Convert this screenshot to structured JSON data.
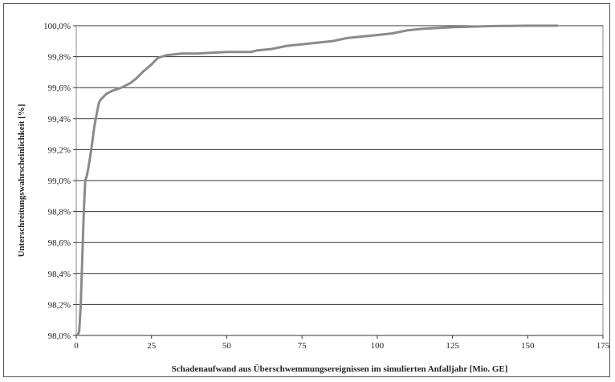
{
  "chart_data": {
    "type": "line",
    "title": "",
    "xlabel": "Schadenaufwand aus Überschwemmungsereignissen im simulierten Anfalljahr [Mio. GE]",
    "ylabel": "Unterschreitungswahrscheinlichkeit [%]",
    "xlim": [
      0,
      175
    ],
    "ylim": [
      98.0,
      100.0
    ],
    "x_ticks": [
      "0",
      "25",
      "50",
      "75",
      "100",
      "125",
      "150",
      "175"
    ],
    "y_ticks": [
      "98,0%",
      "98,2%",
      "98,4%",
      "98,6%",
      "98,8%",
      "99,0%",
      "99,2%",
      "99,4%",
      "99,6%",
      "99,8%",
      "100,0%"
    ],
    "grid": "horizontal",
    "legend": "none",
    "line_color": "#8a8a8a",
    "series": [
      {
        "x": [
          0.5,
          1,
          1.5,
          2,
          2.5,
          3,
          3.5,
          4,
          5,
          6,
          7,
          7.5,
          8,
          9,
          10,
          12,
          15,
          18,
          20,
          22,
          25,
          27,
          30,
          35,
          40,
          50,
          58,
          60,
          65,
          70,
          75,
          80,
          85,
          90,
          95,
          100,
          105,
          110,
          115,
          120,
          125,
          130,
          135,
          140,
          150,
          160
        ],
        "y": [
          98.0,
          98.03,
          98.2,
          98.5,
          98.8,
          99.0,
          99.03,
          99.08,
          99.2,
          99.35,
          99.45,
          99.5,
          99.52,
          99.54,
          99.56,
          99.58,
          99.6,
          99.63,
          99.66,
          99.7,
          99.75,
          99.79,
          99.81,
          99.82,
          99.82,
          99.83,
          99.83,
          99.84,
          99.85,
          99.87,
          99.88,
          99.89,
          99.9,
          99.92,
          99.93,
          99.94,
          99.95,
          99.97,
          99.98,
          99.985,
          99.99,
          99.993,
          99.996,
          99.998,
          100.0,
          100.0
        ]
      }
    ]
  }
}
